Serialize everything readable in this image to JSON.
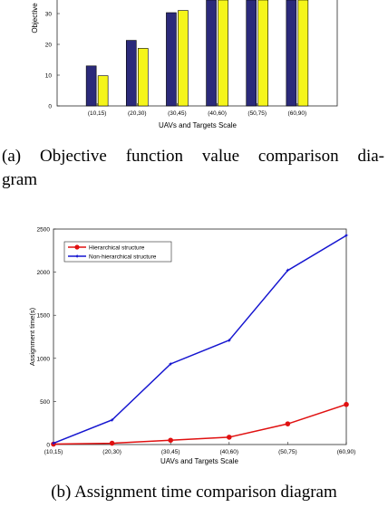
{
  "caption_a": {
    "line1": "(a) Objective function value comparison dia-",
    "line2": "gram"
  },
  "caption_b": "(b) Assignment time comparison diagram",
  "chart_data": [
    {
      "type": "bar",
      "title": "",
      "xlabel": "UAVs and Targets Scale",
      "ylabel": "Objective",
      "categories": [
        "(10,15)",
        "(20,30)",
        "(30,45)",
        "(40,60)",
        "(50,75)",
        "(60,90)"
      ],
      "series": [
        {
          "values": [
            13,
            21.3,
            30.3,
            35,
            35,
            35
          ],
          "color": "#2b2a7a"
        },
        {
          "values": [
            9.8,
            18.7,
            31,
            35,
            35,
            35
          ],
          "color": "#f5f51a"
        }
      ],
      "yticks": [
        0,
        10,
        20,
        30
      ],
      "ylim": [
        0,
        35
      ],
      "grid": false
    },
    {
      "type": "line",
      "title": "",
      "xlabel": "UAVs and Targets Scale",
      "ylabel": "Assignment time(s)",
      "categories": [
        "(10,15)",
        "(20,30)",
        "(30,45)",
        "(40,60)",
        "(50,75)",
        "(60,90)"
      ],
      "series": [
        {
          "name": "Hierarchical structure",
          "values": [
            5,
            15,
            50,
            85,
            240,
            465
          ],
          "color": "#e01010",
          "marker": "circle"
        },
        {
          "name": "Non-hierarchical structure",
          "values": [
            15,
            285,
            935,
            1210,
            2020,
            2425
          ],
          "color": "#1515d0",
          "marker": "star"
        }
      ],
      "yticks": [
        0,
        500,
        1000,
        1500,
        2000,
        2500
      ],
      "ylim": [
        0,
        2500
      ],
      "legend": "top-left",
      "grid": false
    }
  ]
}
